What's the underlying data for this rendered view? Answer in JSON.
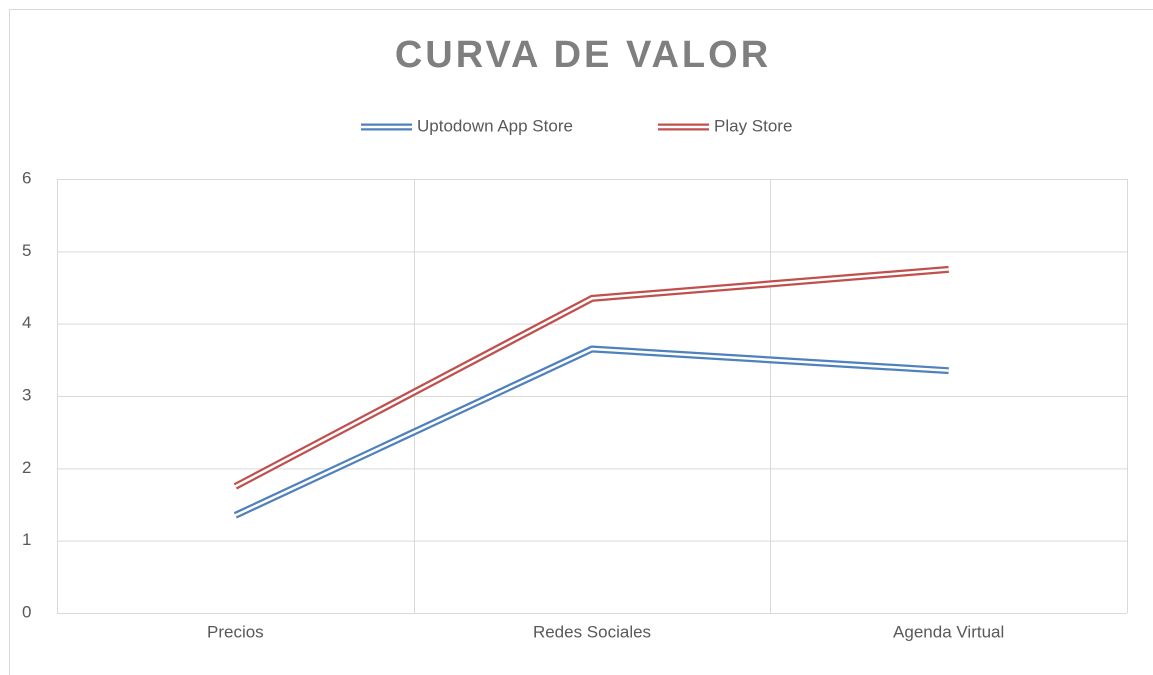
{
  "chart_data": {
    "type": "line",
    "title": "CURVA DE VALOR",
    "categories": [
      "Precios",
      "Redes Sociales",
      "Agenda Virtual"
    ],
    "series": [
      {
        "name": "Uptodown App Store",
        "color": "#4f81bd",
        "values": [
          1.35,
          3.65,
          3.35
        ]
      },
      {
        "name": "Play Store",
        "color": "#c0504d",
        "values": [
          1.75,
          4.35,
          4.75
        ]
      }
    ],
    "ylim": [
      0,
      6
    ],
    "yticks": [
      0,
      1,
      2,
      3,
      4,
      5,
      6
    ],
    "grid": true,
    "legend": "top"
  }
}
